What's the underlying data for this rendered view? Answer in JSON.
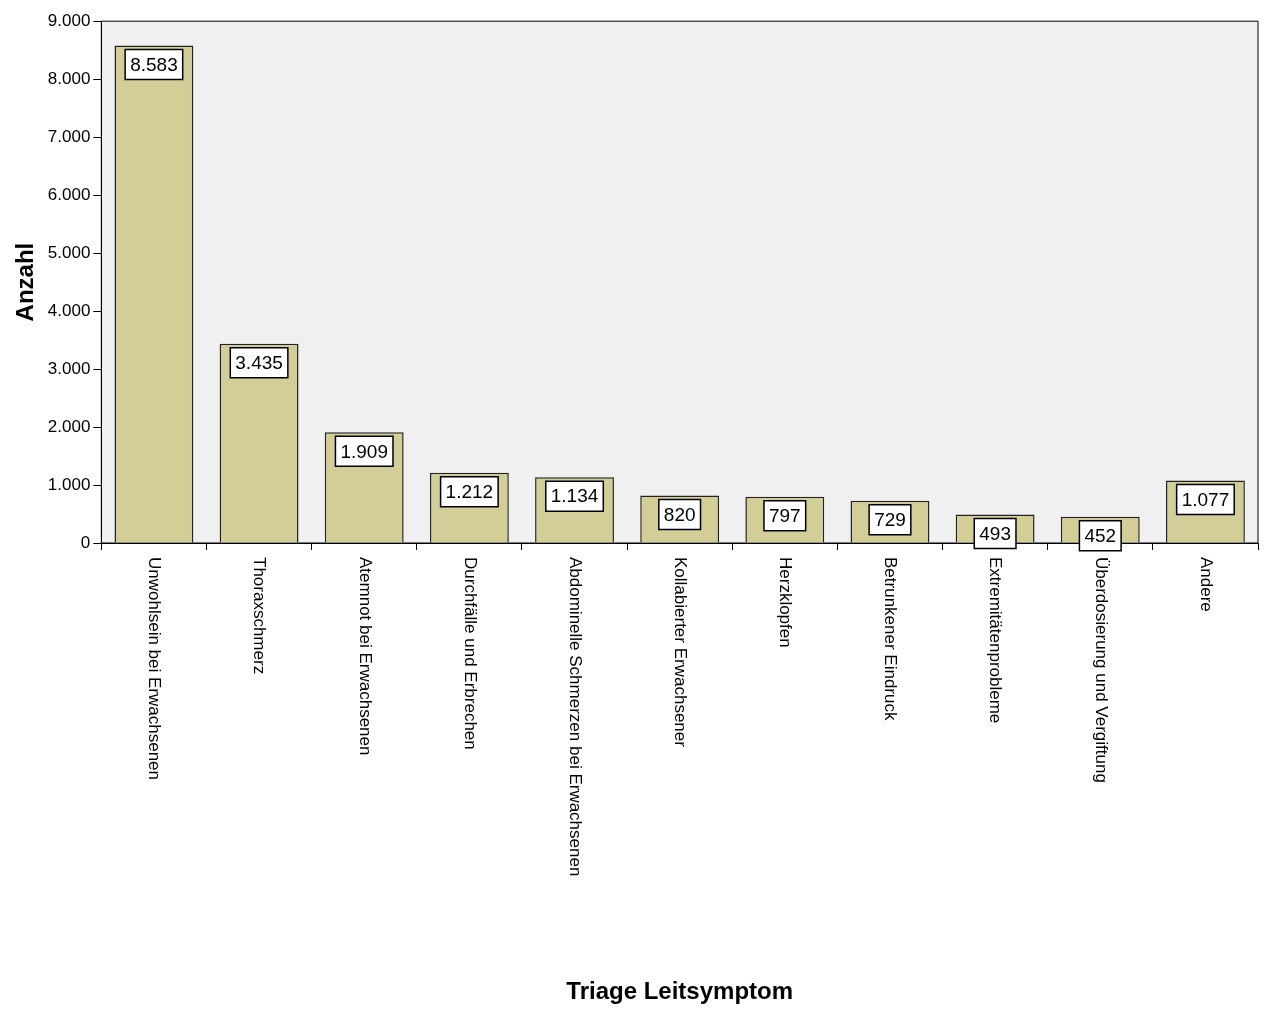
{
  "chart_data": {
    "type": "bar",
    "xlabel": "Triage Leitsymptom",
    "ylabel": "Anzahl",
    "categories": [
      "Unwohlsein bei Erwachsenen",
      "Thoraxschmerz",
      "Atemnot bei Erwachsenen",
      "Durchfälle und Erbrechen",
      "Abdominelle Schmerzen bei Erwachsenen",
      "Kollabierter Erwachsener",
      "Herzklopfen",
      "Betrunkener Eindruck",
      "Extremitätenprobleme",
      "Überdosierung und Vergiftung",
      "Andere"
    ],
    "values": [
      8583,
      3435,
      1909,
      1212,
      1134,
      820,
      797,
      729,
      493,
      452,
      1077
    ],
    "value_labels": [
      "8.583",
      "3.435",
      "1.909",
      "1.212",
      "1.134",
      "820",
      "797",
      "729",
      "493",
      "452",
      "1.077"
    ],
    "color": "#d3ce98",
    "ylim": [
      0,
      9000
    ],
    "yticks": [
      {
        "value": 0,
        "label": "0"
      },
      {
        "value": 1000,
        "label": "1.000"
      },
      {
        "value": 2000,
        "label": "2.000"
      },
      {
        "value": 3000,
        "label": "3.000"
      },
      {
        "value": 4000,
        "label": "4.000"
      },
      {
        "value": 5000,
        "label": "5.000"
      },
      {
        "value": 6000,
        "label": "6.000"
      },
      {
        "value": 7000,
        "label": "7.000"
      },
      {
        "value": 8000,
        "label": "8.000"
      },
      {
        "value": 9000,
        "label": "9.000"
      }
    ]
  }
}
